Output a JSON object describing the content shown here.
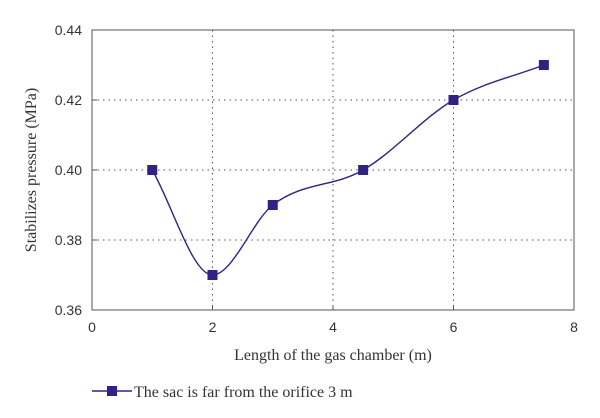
{
  "chart_data": {
    "type": "line",
    "xlabel": "Length of the gas chamber (m)",
    "ylabel": "Stabilizes pressure (MPa)",
    "xlim": [
      0,
      8
    ],
    "ylim": [
      0.36,
      0.44
    ],
    "x_ticks": [
      "0",
      "2",
      "4",
      "6",
      "8"
    ],
    "y_ticks": [
      "0.36",
      "0.38",
      "0.40",
      "0.42",
      "0.44"
    ],
    "grid": "dotted",
    "legend_position": "bottom",
    "series": [
      {
        "name": "The sac is far from the orifice 3 m",
        "color": "#2e2384",
        "marker": "square",
        "smooth": true,
        "x": [
          1,
          2,
          3,
          4.5,
          6,
          7.5
        ],
        "y": [
          0.4,
          0.37,
          0.39,
          0.4,
          0.42,
          0.43
        ]
      }
    ]
  }
}
